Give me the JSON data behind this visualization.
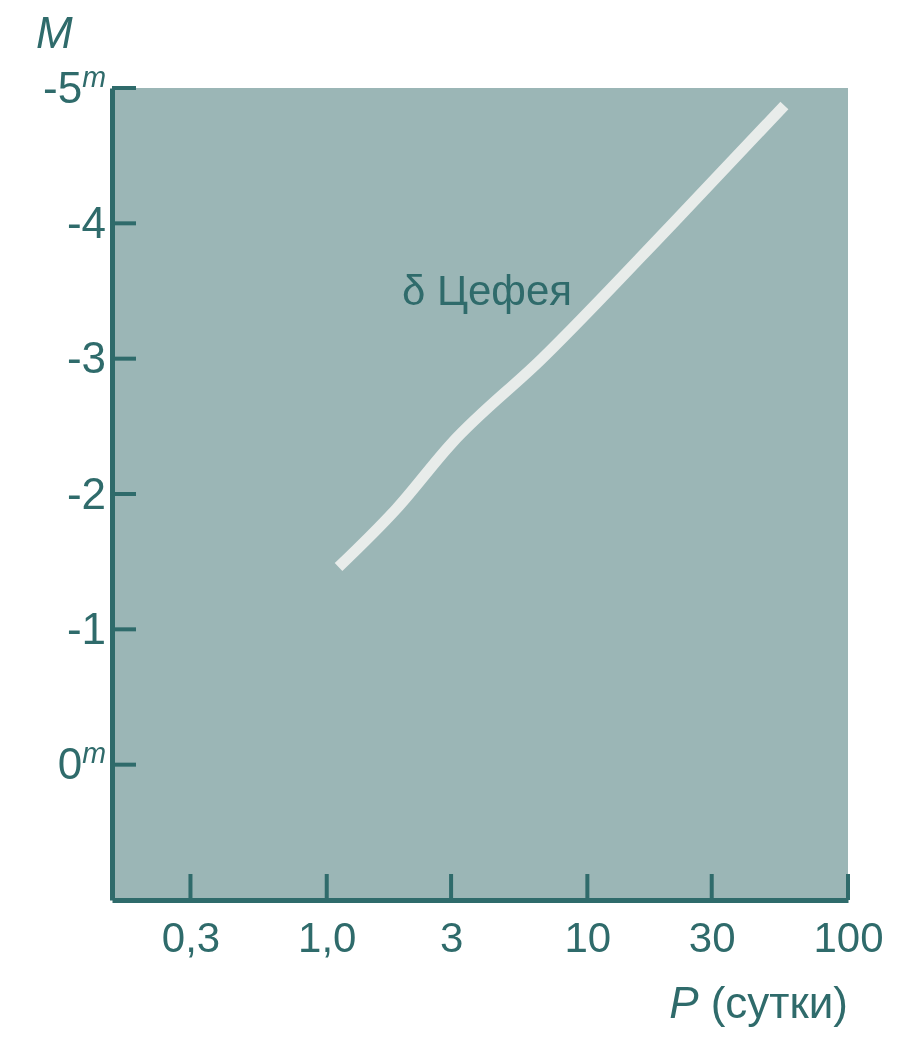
{
  "chart_data": {
    "type": "line",
    "xlabel": "P (сутки)",
    "ylabel": "M",
    "log": "x",
    "xlim": [
      0.15,
      100
    ],
    "xticks": [
      {
        "value": 0.3,
        "label": "0,3"
      },
      {
        "value": 1,
        "label": "1,0"
      },
      3,
      10,
      30,
      100
    ],
    "ylim": [
      1,
      -5
    ],
    "yticks": [
      {
        "value": -5,
        "label": "-5$^{m}$"
      },
      -4,
      -3,
      -2,
      -1,
      {
        "value": 0,
        "label": "0$^{m}$"
      }
    ],
    "grid": false,
    "marker": "none",
    "line_style": "solid",
    "series": [
      {
        "name": "δ Цефея",
        "color": "#e8ecea",
        "x": [
          1.11,
          1.85,
          3,
          6.7,
          21.3,
          57
        ],
        "values": [
          -1.46,
          -1.89,
          -2.37,
          -3,
          -4,
          -4.87
        ]
      }
    ]
  }
}
